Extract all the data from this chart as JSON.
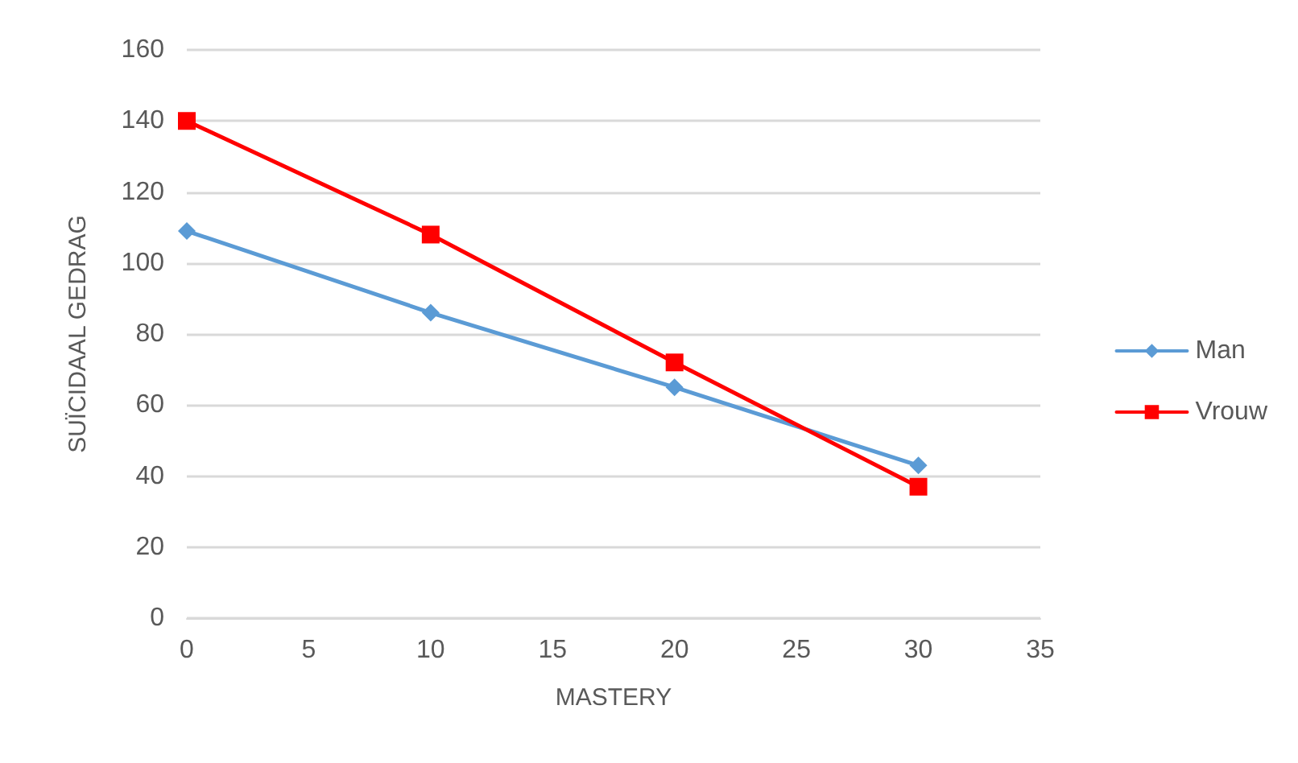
{
  "chart_data": {
    "type": "line",
    "xlabel": "MASTERY",
    "ylabel": "SUÏCIDAAL GEDRAG",
    "x": [
      0,
      10,
      20,
      30
    ],
    "series": [
      {
        "name": "Man",
        "color": "#5b9bd5",
        "marker": "diamond",
        "values": [
          109,
          86,
          65,
          43
        ]
      },
      {
        "name": "Vrouw",
        "color": "#ff0000",
        "marker": "square",
        "values": [
          140,
          108,
          72,
          37
        ]
      }
    ],
    "xlim": [
      0,
      35
    ],
    "xticks": [
      0,
      5,
      10,
      15,
      20,
      25,
      30,
      35
    ],
    "ylim": [
      0,
      160
    ],
    "yticks": [
      0,
      20,
      40,
      60,
      80,
      100,
      120,
      140,
      160
    ],
    "grid": "y",
    "legend": "right",
    "line_style": "solid"
  }
}
